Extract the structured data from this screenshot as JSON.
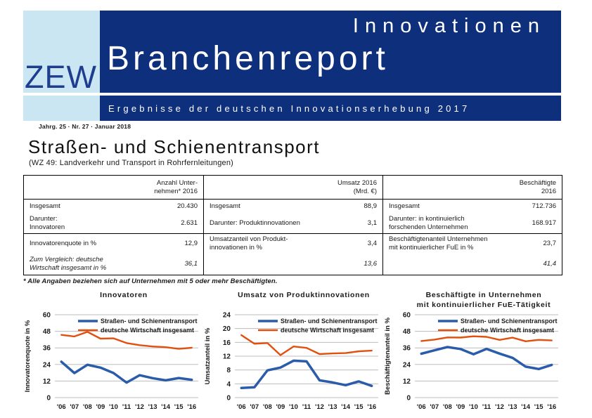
{
  "header": {
    "logo": "ZEW",
    "title_line1": "Innovationen",
    "title_line2": "Branchenreport",
    "subtitle": "Ergebnisse der deutschen Innovationserhebung 2017",
    "issue": "Jahrg. 25 · Nr. 27 · Januar 2018",
    "colors": {
      "navy": "#0E2F7C",
      "light_blue": "#C9E6F2",
      "logo_text": "#1E3D8F"
    }
  },
  "page": {
    "title": "Straßen- und Schienentransport",
    "subtitle": "(WZ 49: Landverkehr und Transport in Rohrfernleitungen)",
    "footnote": "* Alle Angaben beziehen sich auf Unternehmen mit 5 oder mehr Beschäftigten."
  },
  "table": {
    "groups": [
      {
        "header": "Anzahl Unter-\nnehmen* 2016",
        "rows": [
          {
            "label": "Insgesamt",
            "value": "20.430",
            "italic": false
          },
          {
            "label": "Darunter:\nInnovatoren",
            "value": "2.631",
            "italic": false
          },
          {
            "label": "Innovatorenquote in %",
            "value": "12,9",
            "italic": false
          },
          {
            "label": "Zum Vergleich: deutsche\nWirtschaft insgesamt in %",
            "value": "36,1",
            "italic": true
          }
        ]
      },
      {
        "header": "Umsatz 2016\n(Mrd. €)",
        "rows": [
          {
            "label": "Insgesamt",
            "value": "88,9",
            "italic": false
          },
          {
            "label": "Darunter: Produktinnovationen",
            "value": "3,1",
            "italic": false
          },
          {
            "label": "Umsatzanteil von Produkt-\ninnovationen in %",
            "value": "3,4",
            "italic": false
          },
          {
            "label": "",
            "value": "13,6",
            "italic": true
          }
        ]
      },
      {
        "header": "Beschäftigte\n2016",
        "rows": [
          {
            "label": "Insgesamt",
            "value": "712.736",
            "italic": false
          },
          {
            "label": "Darunter: in kontinuierlich\nforschenden Unternehmen",
            "value": "168.917",
            "italic": false
          },
          {
            "label": "Beschäftigtenanteil Unternehmen\nmit kontinuierlicher FuE in %",
            "value": "23,7",
            "italic": false
          },
          {
            "label": "",
            "value": "41,4",
            "italic": true
          }
        ]
      }
    ]
  },
  "chart_data": [
    {
      "type": "line",
      "title": "Innovatoren",
      "ylabel": "Innovatorenquote in %",
      "ylim": [
        0,
        60
      ],
      "yticks": [
        0,
        12,
        24,
        36,
        48,
        60
      ],
      "grid": true,
      "legend_position": "top-inside",
      "categories": [
        "'06",
        "'07",
        "'08",
        "'09",
        "'10",
        "'11",
        "'12",
        "'13",
        "'14",
        "'15",
        "'16"
      ],
      "series": [
        {
          "name": "Straßen- und Schienentransport",
          "color": "#2A5CAA",
          "width": 3.5,
          "values": [
            26.0,
            17.8,
            23.8,
            21.7,
            17.8,
            10.9,
            16.2,
            14.1,
            12.5,
            14.2,
            12.9
          ]
        },
        {
          "name": "deutsche Wirtschaft insgesamt",
          "color": "#E2500F",
          "width": 2.4,
          "values": [
            45.4,
            44.3,
            47.6,
            42.7,
            42.9,
            39.5,
            38.0,
            37.0,
            36.5,
            35.3,
            36.1
          ]
        }
      ]
    },
    {
      "type": "line",
      "title": "Umsatz von Produktinnovationen",
      "ylabel": "Umsatzanteil in %",
      "ylim": [
        0,
        24
      ],
      "yticks": [
        0,
        4,
        8,
        12,
        16,
        20,
        24
      ],
      "grid": true,
      "legend_position": "top-inside",
      "categories": [
        "'06",
        "'07",
        "'08",
        "'09",
        "'10",
        "'11",
        "'12",
        "'13",
        "'14",
        "'15",
        "'16"
      ],
      "series": [
        {
          "name": "Straßen- und Schienentransport",
          "color": "#2A5CAA",
          "width": 3.5,
          "values": [
            2.8,
            3.0,
            7.9,
            8.7,
            10.7,
            10.5,
            5.0,
            4.4,
            3.6,
            4.7,
            3.4
          ]
        },
        {
          "name": "deutsche Wirtschaft insgesamt",
          "color": "#E2500F",
          "width": 2.4,
          "values": [
            18.1,
            15.6,
            15.8,
            12.3,
            14.8,
            14.4,
            12.6,
            12.8,
            12.9,
            13.4,
            13.6
          ]
        }
      ]
    },
    {
      "type": "line",
      "title": "Beschäftigte in Unternehmen\nmit kontinuierlicher FuE-Tätigkeit",
      "ylabel": "Beschäftigtenanteil in %",
      "ylim": [
        0,
        60
      ],
      "yticks": [
        0,
        12,
        24,
        36,
        48,
        60
      ],
      "grid": true,
      "legend_position": "top-inside",
      "categories": [
        "'06",
        "'07",
        "'08",
        "'09",
        "'10",
        "'11",
        "'12",
        "'13",
        "'14",
        "'15",
        "'16"
      ],
      "series": [
        {
          "name": "Straßen- und Schienentransport",
          "color": "#2A5CAA",
          "width": 3.5,
          "values": [
            31.8,
            34.2,
            36.6,
            35.2,
            31.4,
            35.3,
            31.9,
            28.8,
            22.4,
            20.7,
            23.7
          ]
        },
        {
          "name": "deutsche Wirtschaft insgesamt",
          "color": "#E2500F",
          "width": 2.4,
          "values": [
            41.0,
            42.0,
            43.6,
            43.5,
            44.4,
            44.0,
            41.8,
            43.4,
            40.8,
            41.8,
            41.4
          ]
        }
      ]
    }
  ]
}
